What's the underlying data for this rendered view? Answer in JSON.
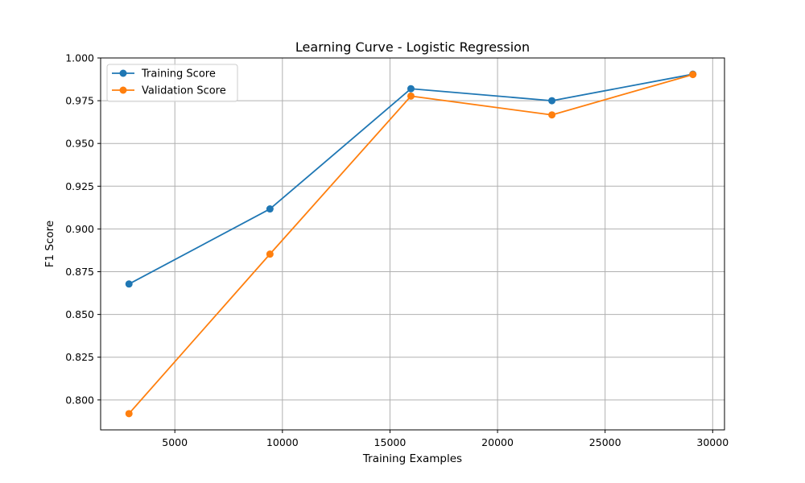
{
  "chart_data": {
    "type": "line",
    "title": "Learning Curve - Logistic Regression",
    "xlabel": "Training Examples",
    "ylabel": "F1 Score",
    "xlim": [
      1550,
      30550
    ],
    "ylim": [
      0.7825,
      1.0
    ],
    "x_ticks": [
      5000,
      10000,
      15000,
      20000,
      25000,
      30000
    ],
    "x_tick_labels": [
      "5000",
      "10000",
      "15000",
      "20000",
      "25000",
      "30000"
    ],
    "y_ticks": [
      0.8,
      0.825,
      0.85,
      0.875,
      0.9,
      0.925,
      0.95,
      0.975,
      1.0
    ],
    "y_tick_labels": [
      "0.800",
      "0.825",
      "0.850",
      "0.875",
      "0.900",
      "0.925",
      "0.950",
      "0.975",
      "1.000"
    ],
    "grid": true,
    "legend_position": "top-left",
    "x": [
      2868,
      9421,
      15974,
      22527,
      29080
    ],
    "series": [
      {
        "name": "Training Score",
        "color": "#1f77b4",
        "marker": "circle",
        "values": [
          0.8678,
          0.9117,
          0.982,
          0.975,
          0.9905
        ]
      },
      {
        "name": "Validation Score",
        "color": "#ff7f0e",
        "marker": "circle",
        "values": [
          0.792,
          0.8853,
          0.9777,
          0.9667,
          0.9903
        ]
      }
    ]
  }
}
